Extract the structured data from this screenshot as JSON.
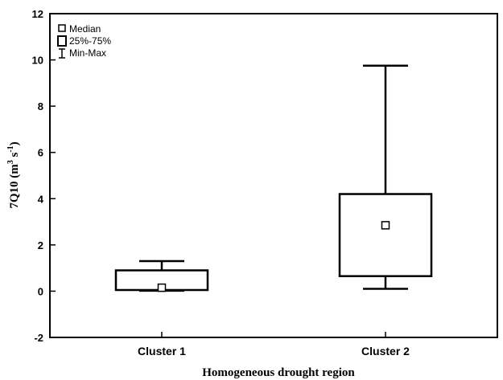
{
  "chart_data": {
    "type": "box",
    "xlabel": "Homogeneous drought region",
    "ylabel_main": "7Q10 (m",
    "ylabel_sup1": "3",
    "ylabel_mid": " s",
    "ylabel_sup2": "-1",
    "ylabel_end": ")",
    "ylim": [
      -2,
      12
    ],
    "yticks": [
      -2,
      0,
      2,
      4,
      6,
      8,
      10,
      12
    ],
    "grid": false,
    "legend_position": "top-left",
    "legend": {
      "median": "Median",
      "box": "25%-75%",
      "whisker": "Min-Max"
    },
    "categories": [
      "Cluster 1",
      "Cluster 2"
    ],
    "boxes": [
      {
        "min": 0.02,
        "q1": 0.05,
        "median": 0.15,
        "q3": 0.9,
        "max": 1.3
      },
      {
        "min": 0.1,
        "q1": 0.65,
        "median": 2.85,
        "q3": 4.2,
        "max": 9.75
      }
    ]
  }
}
